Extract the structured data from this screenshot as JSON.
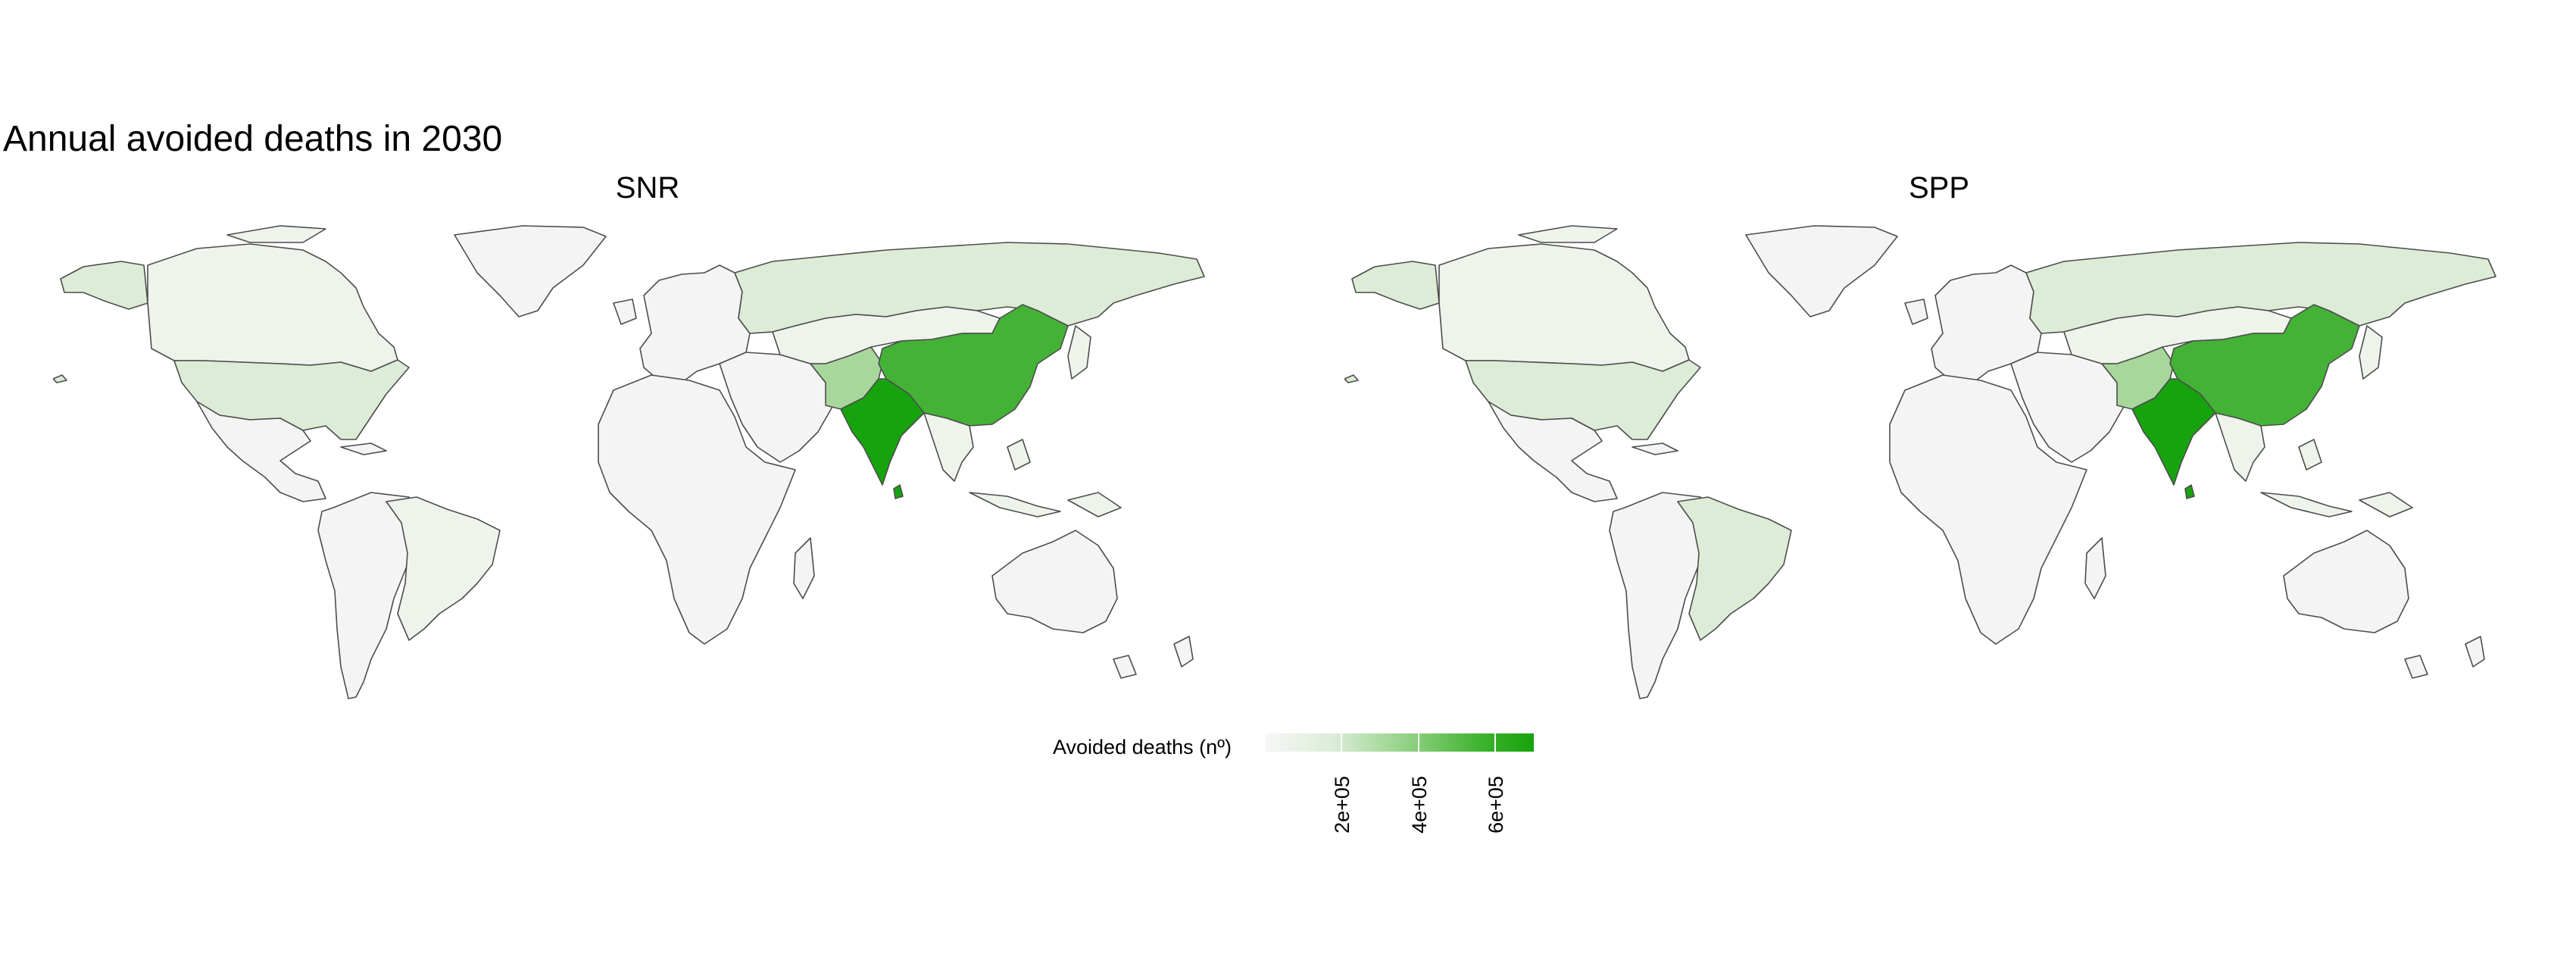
{
  "title": "Annual avoided deaths in 2030",
  "panels": [
    {
      "name": "SNR"
    },
    {
      "name": "SPP"
    }
  ],
  "legend": {
    "title": "Avoided deaths (nº)",
    "ticks": [
      {
        "label": "2e+05",
        "value": 200000
      },
      {
        "label": "4e+05",
        "value": 400000
      },
      {
        "label": "6e+05",
        "value": 600000
      }
    ],
    "range": [
      0,
      700000
    ],
    "low_color": "#f7f7f7",
    "high_color": "#16a30c"
  },
  "colors": {
    "none": "#f4f4f4",
    "very_low": "#eef3ec",
    "low": "#dcecd6",
    "mid": "#a8d79c",
    "high": "#44b236",
    "max": "#17a30e"
  },
  "regions": {
    "SNR": {
      "north_america": "very_low",
      "usa": "low",
      "alaska": "low",
      "greenland": "none",
      "latin_america": "none",
      "brazil": "very_low",
      "europe": "none",
      "russia": "low",
      "africa": "none",
      "middle_east": "none",
      "central_asia": "very_low",
      "pakistan": "mid",
      "china": "high",
      "india": "max",
      "se_asia": "very_low",
      "australia": "none"
    },
    "SPP": {
      "north_america": "very_low",
      "usa": "low",
      "alaska": "low",
      "greenland": "none",
      "latin_america": "none",
      "brazil": "low",
      "europe": "none",
      "russia": "low",
      "africa": "none",
      "middle_east": "none",
      "central_asia": "very_low",
      "pakistan": "mid",
      "china": "high",
      "india": "max",
      "se_asia": "very_low",
      "australia": "none"
    }
  }
}
